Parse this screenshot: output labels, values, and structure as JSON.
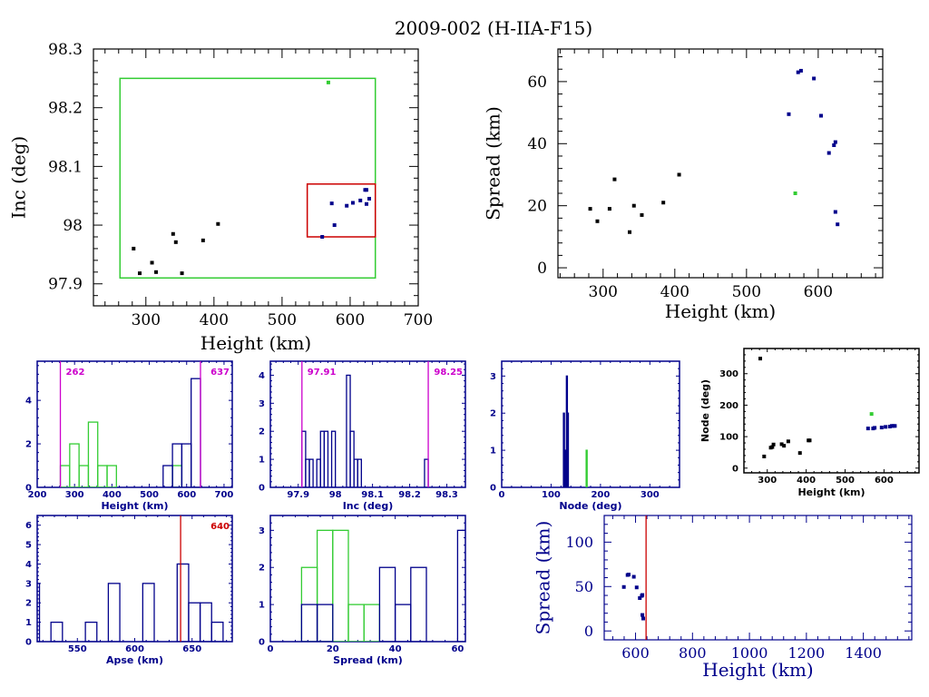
{
  "title": "2009-002 (H-IIA-F15)",
  "colors": {
    "black": "#000000",
    "blue": "#00008b",
    "green": "#33cc33",
    "magenta": "#cc00cc",
    "red": "#cc0000",
    "navy": "#00008b"
  },
  "chart_data": [
    {
      "id": "inc_vs_height",
      "type": "scatter",
      "xlabel": "Height (km)",
      "ylabel": "Inc (deg)",
      "xlim": [
        223,
        700
      ],
      "ylim": [
        97.8625,
        98.3
      ],
      "xticks": [
        300,
        400,
        500,
        600,
        700
      ],
      "yticks": [
        97.9,
        98,
        98.1,
        98.2,
        98.3
      ],
      "ytick_labels": [
        "97.9",
        "98",
        "98.1",
        "98.2",
        "98.3"
      ],
      "boxes": [
        {
          "name": "green-box",
          "color": "green",
          "x": [
            262,
            637
          ],
          "y": [
            97.91,
            98.25
          ]
        },
        {
          "name": "red-box",
          "color": "red",
          "x": [
            537,
            637
          ],
          "y": [
            97.98,
            98.07
          ]
        }
      ],
      "series": [
        {
          "name": "black",
          "color": "black",
          "points": [
            [
              282,
              97.96
            ],
            [
              291,
              97.918
            ],
            [
              309,
              97.936
            ],
            [
              315,
              97.92
            ],
            [
              340,
              97.985
            ],
            [
              344,
              97.971
            ],
            [
              353,
              97.918
            ],
            [
              384,
              97.974
            ],
            [
              406,
              98.002
            ]
          ]
        },
        {
          "name": "blue",
          "color": "blue",
          "points": [
            [
              559,
              97.98
            ],
            [
              573,
              98.037
            ],
            [
              577,
              98.0
            ],
            [
              595,
              98.033
            ],
            [
              604,
              98.038
            ],
            [
              615,
              98.042
            ],
            [
              622,
              98.06
            ],
            [
              624,
              98.036
            ],
            [
              628,
              98.045
            ],
            [
              624,
              98.06
            ]
          ]
        },
        {
          "name": "green",
          "color": "green",
          "points": [
            [
              568,
              98.243
            ]
          ]
        }
      ]
    },
    {
      "id": "spread_vs_height",
      "type": "scatter",
      "xlabel": "Height (km)",
      "ylabel": "Spread (km)",
      "xlim": [
        237,
        690
      ],
      "ylim": [
        -3.2,
        70.5
      ],
      "xticks": [
        300,
        400,
        500,
        600
      ],
      "yticks": [
        0,
        20,
        40,
        60
      ],
      "series": [
        {
          "name": "black",
          "color": "black",
          "points": [
            [
              282,
              19
            ],
            [
              292,
              15
            ],
            [
              309,
              19
            ],
            [
              316,
              28.5
            ],
            [
              337,
              11.5
            ],
            [
              343,
              20
            ],
            [
              354,
              17
            ],
            [
              384,
              21
            ],
            [
              406,
              30
            ]
          ]
        },
        {
          "name": "blue",
          "color": "blue",
          "points": [
            [
              559,
              49.5
            ],
            [
              572,
              63
            ],
            [
              576,
              63.5
            ],
            [
              594,
              61
            ],
            [
              604,
              49
            ],
            [
              615,
              37
            ],
            [
              622,
              39.5
            ],
            [
              624,
              40.5
            ],
            [
              624,
              18
            ],
            [
              627,
              14
            ]
          ]
        },
        {
          "name": "green",
          "color": "green",
          "points": [
            [
              568,
              24
            ]
          ]
        }
      ]
    },
    {
      "id": "height_hist",
      "type": "bar",
      "xlabel": "Height (km)",
      "ylabel": "",
      "xlim": [
        200,
        722
      ],
      "ylim": [
        0,
        5.8
      ],
      "xticks": [
        200,
        300,
        400,
        500,
        600,
        700
      ],
      "yticks": [
        0,
        2,
        4
      ],
      "bin_width": 25,
      "series": [
        {
          "name": "green",
          "color": "green",
          "bins": [
            [
              262,
              1
            ],
            [
              287,
              2
            ],
            [
              312,
              1
            ],
            [
              337,
              3
            ],
            [
              362,
              1
            ],
            [
              387,
              1
            ],
            [
              562,
              1
            ]
          ]
        },
        {
          "name": "blue",
          "color": "blue",
          "bins": [
            [
              537,
              1
            ],
            [
              562,
              2
            ],
            [
              587,
              2
            ],
            [
              612,
              5
            ]
          ]
        }
      ],
      "vlines": [
        {
          "x": 262,
          "label": "262",
          "color": "magenta"
        },
        {
          "x": 637,
          "label": "637",
          "color": "magenta"
        }
      ]
    },
    {
      "id": "inc_hist",
      "type": "bar",
      "xlabel": "Inc (deg)",
      "ylabel": "",
      "xlim": [
        97.825,
        98.35
      ],
      "ylim": [
        0,
        4.5
      ],
      "xticks": [
        97.9,
        98,
        98.1,
        98.2,
        98.3
      ],
      "xtick_labels": [
        "97.9",
        "98",
        "98.1",
        "98.2",
        "98.3"
      ],
      "yticks": [
        0,
        1,
        2,
        3,
        4
      ],
      "bin_width": 0.01,
      "series": [
        {
          "name": "blue",
          "color": "blue",
          "bins": [
            [
              97.91,
              2
            ],
            [
              97.92,
              1
            ],
            [
              97.93,
              1
            ],
            [
              97.95,
              1
            ],
            [
              97.96,
              2
            ],
            [
              97.97,
              2
            ],
            [
              97.99,
              2
            ],
            [
              98.03,
              4
            ],
            [
              98.04,
              2
            ],
            [
              98.05,
              1
            ],
            [
              98.06,
              1
            ],
            [
              98.24,
              1
            ]
          ]
        }
      ],
      "vlines": [
        {
          "x": 97.91,
          "label": "97.91",
          "color": "magenta"
        },
        {
          "x": 98.25,
          "label": "98.25",
          "color": "magenta"
        }
      ]
    },
    {
      "id": "node_hist",
      "type": "bar",
      "xlabel": "Node (deg)",
      "ylabel": "",
      "xlim": [
        0,
        360
      ],
      "ylim": [
        0,
        3.4
      ],
      "xticks": [
        0,
        100,
        200,
        300
      ],
      "yticks": [
        0,
        1,
        2,
        3
      ],
      "bin_width": 2,
      "series": [
        {
          "name": "blue",
          "color": "blue",
          "bins": [
            [
              125,
              2
            ],
            [
              127,
              1
            ],
            [
              129,
              1
            ],
            [
              131,
              3
            ],
            [
              133,
              2
            ]
          ]
        },
        {
          "name": "green",
          "color": "green",
          "bins": [
            [
              171,
              1
            ]
          ]
        }
      ]
    },
    {
      "id": "node_vs_height",
      "type": "scatter",
      "xlabel": "Height (km)",
      "ylabel": "Node (deg)",
      "xlim": [
        240,
        690
      ],
      "ylim": [
        -15,
        380
      ],
      "xticks": [
        300,
        400,
        500,
        600
      ],
      "yticks": [
        0,
        100,
        200,
        300
      ],
      "series": [
        {
          "name": "black",
          "color": "black",
          "points": [
            [
              282,
              348
            ],
            [
              292,
              37
            ],
            [
              309,
              65
            ],
            [
              313,
              67
            ],
            [
              316,
              75
            ],
            [
              337,
              76
            ],
            [
              343,
              71
            ],
            [
              354,
              85
            ],
            [
              384,
              48
            ],
            [
              406,
              88
            ],
            [
              409,
              88
            ]
          ]
        },
        {
          "name": "blue",
          "color": "blue",
          "points": [
            [
              559,
              126
            ],
            [
              572,
              126
            ],
            [
              576,
              128
            ],
            [
              594,
              129
            ],
            [
              604,
              131
            ],
            [
              615,
              132
            ],
            [
              620,
              134
            ],
            [
              624,
              134
            ],
            [
              628,
              134
            ]
          ]
        },
        {
          "name": "green",
          "color": "green",
          "points": [
            [
              568,
              172
            ]
          ]
        }
      ]
    },
    {
      "id": "apse_hist",
      "type": "bar",
      "xlabel": "Apse (km)",
      "ylabel": "",
      "xlim": [
        515,
        685
      ],
      "ylim": [
        0,
        6.5
      ],
      "xticks": [
        550,
        600,
        650
      ],
      "yticks": [
        0,
        1,
        2,
        3,
        4,
        5,
        6
      ],
      "bin_width": 10,
      "series": [
        {
          "name": "blue",
          "color": "blue",
          "bins": [
            [
              507,
              3
            ],
            [
              527,
              1
            ],
            [
              557,
              1
            ],
            [
              577,
              3
            ],
            [
              607,
              3
            ],
            [
              637,
              4
            ],
            [
              647,
              2
            ],
            [
              657,
              2
            ],
            [
              667,
              1
            ]
          ]
        }
      ],
      "vlines": [
        {
          "x": 640,
          "label": "640",
          "color": "red"
        }
      ]
    },
    {
      "id": "spread_hist",
      "type": "bar",
      "xlabel": "Spread (km)",
      "ylabel": "",
      "xlim": [
        0,
        62.5
      ],
      "ylim": [
        0,
        3.4
      ],
      "xticks": [
        0,
        20,
        40,
        60
      ],
      "yticks": [
        0,
        1,
        2,
        3
      ],
      "bin_width": 5,
      "series": [
        {
          "name": "green",
          "color": "green",
          "bins": [
            [
              10,
              2
            ],
            [
              15,
              3
            ],
            [
              20,
              3
            ],
            [
              25,
              1
            ],
            [
              30,
              1
            ]
          ]
        },
        {
          "name": "blue",
          "color": "blue",
          "bins": [
            [
              10,
              1
            ],
            [
              15,
              1
            ],
            [
              35,
              2
            ],
            [
              40,
              1
            ],
            [
              45,
              2
            ],
            [
              60,
              3
            ]
          ]
        }
      ]
    },
    {
      "id": "spread_vs_height_wide",
      "type": "scatter",
      "xlabel": "Height (km)",
      "ylabel": "Spread (km)",
      "xlim": [
        490,
        1570
      ],
      "ylim": [
        -10,
        130
      ],
      "xticks": [
        600,
        800,
        1000,
        1200,
        1400
      ],
      "yticks": [
        0,
        50,
        100
      ],
      "series": [
        {
          "name": "blue",
          "color": "blue",
          "points": [
            [
              559,
              49.5
            ],
            [
              572,
              63
            ],
            [
              576,
              63.5
            ],
            [
              594,
              61
            ],
            [
              604,
              49
            ],
            [
              615,
              37
            ],
            [
              622,
              39.5
            ],
            [
              624,
              40.5
            ],
            [
              624,
              18
            ],
            [
              627,
              14
            ]
          ]
        }
      ],
      "vlines": [
        {
          "x": 637,
          "label": "",
          "color": "red"
        }
      ]
    }
  ]
}
